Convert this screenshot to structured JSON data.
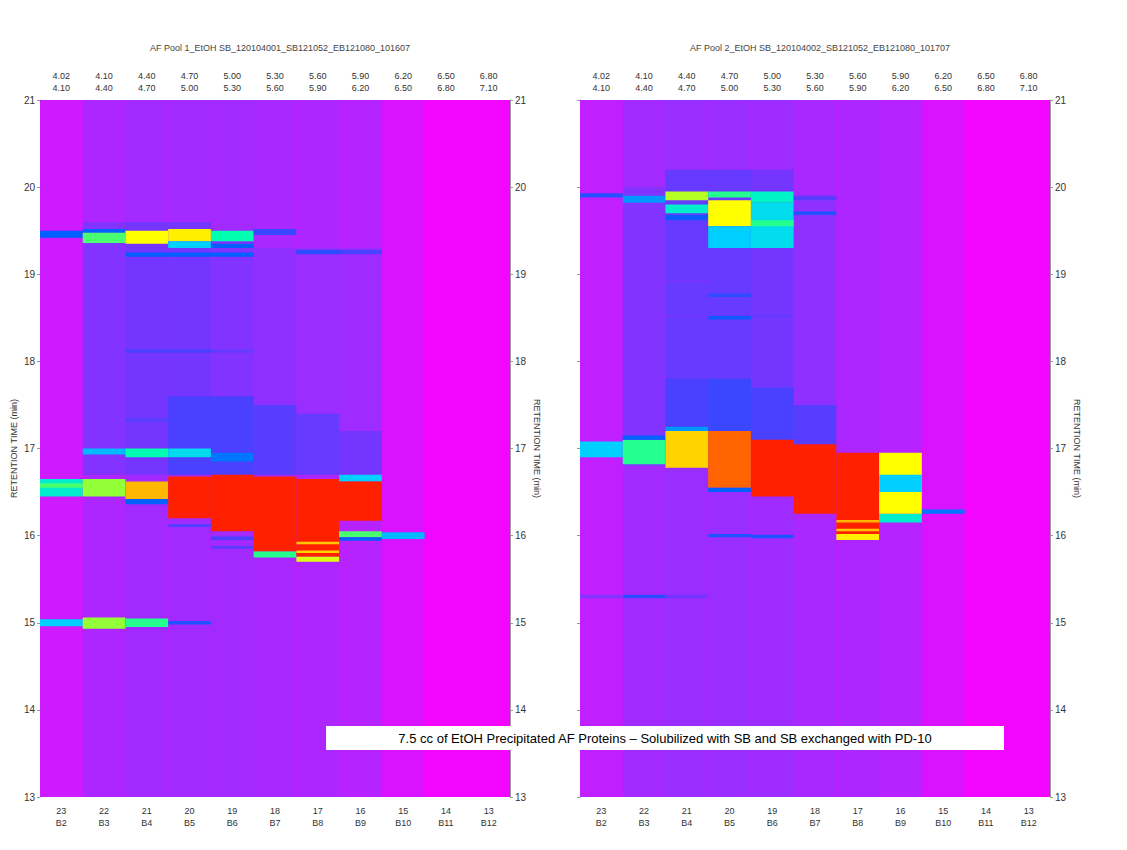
{
  "caption": "7.5 cc of EtOH Precipitated AF Proteins – Solubilized with SB and SB exchanged with PD-10",
  "chart_data": [
    {
      "type": "heatmap",
      "title": "AF Pool 1_EtOH SB_120104001_SB121052_EB121080_101607",
      "ylabel": "RETENTION TIME (min)",
      "categories": [
        "4.02\n4.10",
        "4.10\n4.40",
        "4.40\n4.70",
        "4.70\n5.00",
        "5.00\n5.30",
        "5.30\n5.60",
        "5.60\n5.90",
        "5.90\n6.20",
        "6.20\n6.50",
        "6.50\n6.80",
        "6.80\n7.10"
      ],
      "fractions": [
        "23\nB2",
        "22\nB3",
        "21\nB4",
        "20\nB5",
        "19\nB6",
        "18\nB7",
        "17\nB8",
        "16\nB9",
        "15\nB10",
        "14\nB11",
        "13\nB12"
      ],
      "ylim": [
        13,
        21
      ],
      "yticks": [
        13,
        14,
        15,
        16,
        17,
        18,
        19,
        20,
        21
      ],
      "grid": false,
      "color_range": [
        0,
        100
      ],
      "cells": [
        [
          0,
          13,
          21,
          8
        ],
        [
          1,
          13,
          21,
          14
        ],
        [
          2,
          13,
          21,
          16
        ],
        [
          3,
          13,
          21,
          16
        ],
        [
          4,
          13,
          21,
          16
        ],
        [
          5,
          13,
          21,
          15
        ],
        [
          6,
          13,
          21,
          14
        ],
        [
          7,
          13,
          21,
          12
        ],
        [
          8,
          13,
          21,
          6
        ],
        [
          9,
          13,
          21,
          2
        ],
        [
          10,
          13,
          21,
          2
        ],
        [
          1,
          16.7,
          19.6,
          22
        ],
        [
          2,
          16.7,
          19.6,
          24
        ],
        [
          3,
          16.7,
          19.6,
          24
        ],
        [
          4,
          16.7,
          19.5,
          22
        ],
        [
          5,
          16.7,
          19.3,
          20
        ],
        [
          6,
          16.7,
          19.3,
          18
        ],
        [
          7,
          16.7,
          19.3,
          17
        ],
        [
          3,
          16.7,
          17.6,
          30
        ],
        [
          4,
          16.7,
          17.6,
          30
        ],
        [
          5,
          16.7,
          17.5,
          28
        ],
        [
          6,
          16.7,
          17.4,
          26
        ],
        [
          7,
          16.7,
          17.2,
          24
        ],
        [
          0,
          19.42,
          19.5,
          40
        ],
        [
          1,
          19.36,
          19.48,
          62
        ],
        [
          1,
          19.48,
          19.52,
          40
        ],
        [
          2,
          19.35,
          19.5,
          72
        ],
        [
          2,
          19.2,
          19.25,
          40
        ],
        [
          3,
          19.38,
          19.52,
          74
        ],
        [
          3,
          19.3,
          19.38,
          50
        ],
        [
          3,
          19.2,
          19.25,
          40
        ],
        [
          4,
          19.38,
          19.5,
          58
        ],
        [
          4,
          19.3,
          19.35,
          40
        ],
        [
          4,
          19.2,
          19.25,
          40
        ],
        [
          5,
          19.45,
          19.52,
          32
        ],
        [
          6,
          19.23,
          19.28,
          34
        ],
        [
          7,
          19.23,
          19.28,
          30
        ],
        [
          2,
          18.1,
          18.14,
          30
        ],
        [
          3,
          18.1,
          18.14,
          30
        ],
        [
          4,
          18.1,
          18.14,
          26
        ],
        [
          1,
          16.93,
          17.0,
          48
        ],
        [
          2,
          16.9,
          17.0,
          58
        ],
        [
          3,
          16.9,
          17.0,
          52
        ],
        [
          4,
          16.85,
          16.95,
          42
        ],
        [
          2,
          17.3,
          17.35,
          28
        ],
        [
          0,
          16.45,
          16.65,
          55
        ],
        [
          0,
          16.55,
          16.6,
          62
        ],
        [
          1,
          16.45,
          16.65,
          66
        ],
        [
          2,
          16.42,
          16.62,
          82
        ],
        [
          2,
          16.36,
          16.42,
          40
        ],
        [
          3,
          16.2,
          16.68,
          100
        ],
        [
          4,
          16.05,
          16.7,
          100
        ],
        [
          5,
          15.75,
          15.82,
          60
        ],
        [
          5,
          15.82,
          16.68,
          100
        ],
        [
          6,
          15.7,
          15.76,
          70
        ],
        [
          6,
          15.76,
          16.65,
          100
        ],
        [
          6,
          15.9,
          15.93,
          80
        ],
        [
          6,
          15.8,
          15.83,
          78
        ],
        [
          7,
          16.62,
          16.7,
          50
        ],
        [
          7,
          16.17,
          16.62,
          100
        ],
        [
          7,
          15.98,
          16.05,
          62
        ],
        [
          7,
          15.94,
          15.98,
          40
        ],
        [
          8,
          15.96,
          16.04,
          48
        ],
        [
          3,
          16.1,
          16.13,
          30
        ],
        [
          4,
          15.95,
          15.99,
          30
        ],
        [
          4,
          15.85,
          15.88,
          28
        ],
        [
          0,
          14.96,
          15.04,
          50
        ],
        [
          1,
          14.93,
          15.06,
          66
        ],
        [
          2,
          14.95,
          15.05,
          60
        ],
        [
          3,
          14.98,
          15.02,
          36
        ]
      ]
    },
    {
      "type": "heatmap",
      "title": "AF Pool 2_EtOH SB_120104002_SB121052_EB121080_101707",
      "ylabel": "RETENTION TIME (min)",
      "categories": [
        "4.02\n4.10",
        "4.10\n4.40",
        "4.40\n4.70",
        "4.70\n5.00",
        "5.00\n5.30",
        "5.30\n5.60",
        "5.60\n5.90",
        "5.90\n6.20",
        "6.20\n6.50",
        "6.50\n6.80",
        "6.80\n7.10"
      ],
      "fractions": [
        "23\nB2",
        "22\nB3",
        "21\nB4",
        "20\nB5",
        "19\nB6",
        "18\nB7",
        "17\nB8",
        "16\nB9",
        "15\nB10",
        "14\nB11",
        "13\nB12"
      ],
      "ylim": [
        13,
        21
      ],
      "yticks": [
        13,
        14,
        15,
        16,
        17,
        18,
        19,
        20,
        21
      ],
      "grid": false,
      "color_range": [
        0,
        100
      ],
      "cells": [
        [
          0,
          13,
          21,
          10
        ],
        [
          1,
          13,
          21,
          16
        ],
        [
          2,
          13,
          21,
          18
        ],
        [
          3,
          13,
          21,
          18
        ],
        [
          4,
          13,
          21,
          17
        ],
        [
          5,
          13,
          21,
          15
        ],
        [
          6,
          13,
          21,
          14
        ],
        [
          7,
          13,
          21,
          12
        ],
        [
          8,
          13,
          21,
          6
        ],
        [
          9,
          13,
          21,
          2
        ],
        [
          10,
          13,
          21,
          2
        ],
        [
          1,
          16.8,
          20.0,
          22
        ],
        [
          2,
          16.8,
          20.2,
          26
        ],
        [
          3,
          16.8,
          20.2,
          26
        ],
        [
          4,
          16.8,
          20.2,
          24
        ],
        [
          5,
          16.8,
          19.9,
          20
        ],
        [
          2,
          17.1,
          17.8,
          30
        ],
        [
          3,
          17.1,
          17.8,
          32
        ],
        [
          4,
          17.1,
          17.7,
          30
        ],
        [
          5,
          17.0,
          17.5,
          28
        ],
        [
          0,
          19.88,
          19.93,
          35
        ],
        [
          1,
          19.82,
          19.9,
          45
        ],
        [
          2,
          19.85,
          19.95,
          68
        ],
        [
          2,
          19.7,
          19.8,
          55
        ],
        [
          2,
          19.62,
          19.68,
          38
        ],
        [
          3,
          19.88,
          19.95,
          60
        ],
        [
          3,
          19.55,
          19.85,
          72
        ],
        [
          3,
          19.3,
          19.55,
          50
        ],
        [
          4,
          19.82,
          19.95,
          56
        ],
        [
          4,
          19.3,
          19.82,
          52
        ],
        [
          4,
          19.55,
          19.62,
          60
        ],
        [
          5,
          19.68,
          19.72,
          36
        ],
        [
          5,
          19.85,
          19.9,
          28
        ],
        [
          3,
          18.74,
          18.78,
          34
        ],
        [
          3,
          18.48,
          18.52,
          38
        ],
        [
          4,
          18.5,
          18.53,
          26
        ],
        [
          2,
          18.5,
          18.53,
          24
        ],
        [
          2,
          18.9,
          18.93,
          24
        ],
        [
          0,
          16.9,
          17.08,
          50
        ],
        [
          1,
          16.82,
          17.1,
          60
        ],
        [
          1,
          17.1,
          17.15,
          40
        ],
        [
          2,
          16.78,
          17.2,
          78
        ],
        [
          2,
          17.2,
          17.25,
          45
        ],
        [
          3,
          16.55,
          17.2,
          92
        ],
        [
          3,
          16.5,
          16.55,
          40
        ],
        [
          4,
          16.45,
          17.1,
          100
        ],
        [
          5,
          16.25,
          17.05,
          100
        ],
        [
          6,
          15.95,
          16.02,
          74
        ],
        [
          6,
          16.02,
          16.95,
          100
        ],
        [
          6,
          16.05,
          16.08,
          80
        ],
        [
          6,
          16.15,
          16.18,
          82
        ],
        [
          7,
          16.15,
          16.25,
          55
        ],
        [
          7,
          16.25,
          16.95,
          72
        ],
        [
          7,
          16.5,
          16.7,
          50
        ],
        [
          8,
          16.25,
          16.3,
          42
        ],
        [
          3,
          15.98,
          16.02,
          36
        ],
        [
          4,
          15.97,
          16.01,
          36
        ],
        [
          1,
          15.28,
          15.32,
          34
        ],
        [
          0,
          15.28,
          15.32,
          22
        ],
        [
          2,
          15.28,
          15.32,
          24
        ]
      ]
    }
  ]
}
